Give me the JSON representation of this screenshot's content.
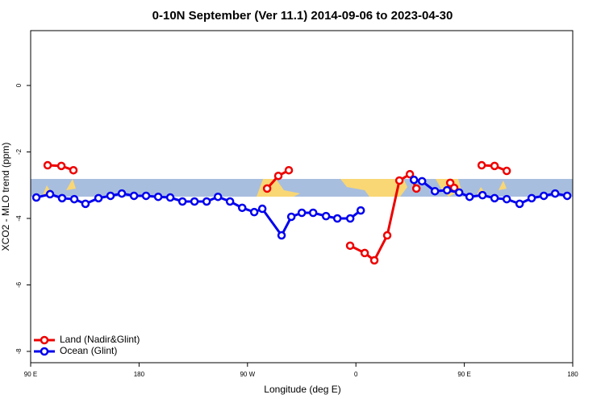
{
  "chart_data": {
    "type": "line",
    "title": "0-10N September (Ver 11.1)   2014-09-06 to 2023-04-30",
    "x_label": "Longitude (deg E)",
    "y_label": "XCO2 - MLO trend (ppm)",
    "xlim": [
      90,
      540
    ],
    "xticks": [
      {
        "value": 90,
        "label": "90 E"
      },
      180,
      {
        "value": 270,
        "label": "90 W"
      },
      {
        "value": 360,
        "label": "0"
      },
      {
        "value": 450,
        "label": "90 E"
      },
      {
        "value": 540,
        "label": "180"
      }
    ],
    "ylim": [
      -8.34,
      1.65
    ],
    "yticks": [
      0,
      -2,
      -4,
      -6,
      -8
    ],
    "legend": "bottom-left",
    "series": [
      {
        "name": "Land (Nadir&Glint)",
        "color": "#ee0000",
        "x": [
          104.1,
          115.5,
          125.5,
          null,
          286.3,
          295.6,
          304.3,
          null,
          355.2,
          367.3,
          375.3,
          386.0,
          396.1,
          404.8,
          410.2,
          null,
          438.3,
          441.6,
          null,
          464.4,
          475.1,
          485.2
        ],
        "values": [
          -2.4,
          -2.42,
          -2.55,
          null,
          -3.1,
          -2.72,
          -2.55,
          null,
          -4.82,
          -5.04,
          -5.26,
          -4.51,
          -2.86,
          -2.67,
          -3.1,
          null,
          -2.93,
          -3.08,
          null,
          -2.4,
          -2.42,
          -2.57
        ]
      },
      {
        "name": "Ocean (Glint)",
        "color": "#0000ee",
        "x": [
          94.7,
          106.1,
          116.1,
          126.2,
          135.5,
          146.3,
          156.3,
          165.7,
          175.8,
          185.8,
          195.9,
          205.9,
          216.0,
          226.0,
          236.1,
          245.5,
          255.5,
          265.6,
          275.6,
          282.3,
          298.3,
          306.4,
          315.1,
          324.5,
          335.2,
          344.6,
          355.3,
          364.0,
          null,
          408.2,
          414.9,
          425.6,
          435.7,
          445.7,
          454.4,
          465.1,
          475.1,
          485.2,
          495.9,
          505.9,
          516.0,
          525.4,
          535.4
        ],
        "values": [
          -3.37,
          -3.27,
          -3.39,
          -3.42,
          -3.56,
          -3.39,
          -3.32,
          -3.25,
          -3.32,
          -3.32,
          -3.35,
          -3.37,
          -3.49,
          -3.49,
          -3.49,
          -3.35,
          -3.49,
          -3.68,
          -3.81,
          -3.71,
          -4.51,
          -3.95,
          -3.83,
          -3.83,
          -3.93,
          -4.0,
          -4.0,
          -3.76,
          null,
          -2.84,
          -2.88,
          -3.18,
          -3.15,
          -3.22,
          -3.35,
          -3.3,
          -3.39,
          -3.42,
          -3.56,
          -3.39,
          -3.32,
          -3.25,
          -3.32
        ]
      }
    ]
  }
}
